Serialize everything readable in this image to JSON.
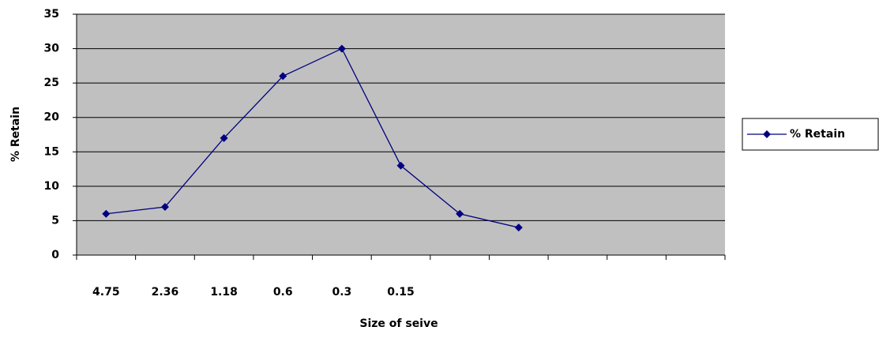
{
  "chart_data": {
    "type": "line",
    "x_label": "Size of seive",
    "y_label": "% Retain",
    "categories": [
      "4.75",
      "2.36",
      "1.18",
      "0.6",
      "0.3",
      "0.15",
      null,
      null,
      null,
      null,
      null
    ],
    "series": [
      {
        "name": "% Retain",
        "color": "#000080",
        "values": [
          6,
          7,
          17,
          26,
          30,
          13,
          6,
          4,
          null,
          null,
          null
        ]
      }
    ],
    "ylim": [
      0,
      35
    ],
    "yticks": [
      0,
      5,
      10,
      15,
      20,
      25,
      30,
      35
    ],
    "grid": true,
    "legend": "right"
  }
}
